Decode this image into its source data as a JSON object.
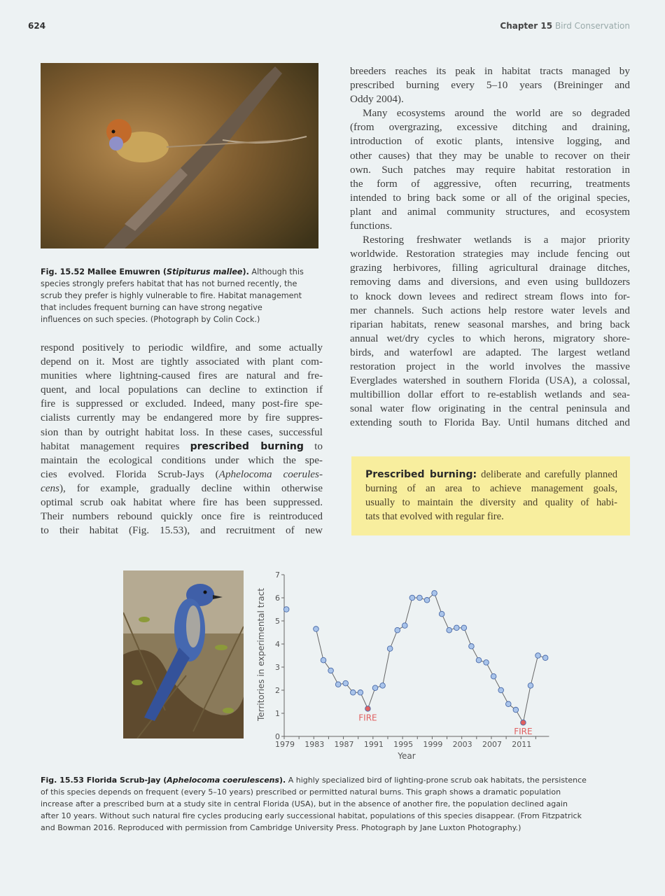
{
  "header": {
    "page_number": "624",
    "chapter_label": "Chapter 15",
    "chapter_title": "Bird Conservation"
  },
  "figure_52": {
    "photo_subject": "Mallee Emuwren perched on branch",
    "caption_lines": [
      {
        "bold": "Fig. 15.52  Mallee Emuwren (",
        "italic_bold": "Stipiturus mallee",
        "bold2": ").",
        "text": " Although this"
      },
      {
        "text": "species strongly prefers habitat that has not burned recently, the"
      },
      {
        "text": "scrub they prefer is highly vulnerable to fire. Habitat management"
      },
      {
        "text": "that includes frequent burning can have strong negative"
      },
      {
        "text": "influences on such species. (Photograph by Colin Cock.)"
      }
    ]
  },
  "left_column": {
    "lines": [
      "respond positively to periodic wildfire, and some actually",
      "depend on it. Most are tightly associated with plant com-",
      "munities where lightning-caused fires are natural and fre-",
      "quent, and local populations can decline to extinction if",
      "fire is suppressed or excluded. Indeed, many post-fire spe-",
      "cialists currently may be endangered more by fire suppres-",
      "sion than by outright habitat loss. In these cases, successful"
    ],
    "line_keyword": {
      "before": "habitat management requires ",
      "keyword": "prescribed burning",
      "after": " to"
    },
    "lines2": [
      "maintain the ecological conditions under which the spe-"
    ],
    "line_italic1": {
      "before": "cies evolved. Florida Scrub-Jays (",
      "italic": "Aphelocoma coerules-"
    },
    "line_italic2": {
      "italic": "cens",
      "after": "), for example, gradually decline within otherwise"
    },
    "lines3": [
      "optimal scrub oak habitat where fire has been suppressed.",
      "Their numbers rebound quickly once fire is reintroduced",
      "to their habitat (Fig. 15.53), and recruitment of new"
    ]
  },
  "right_column": {
    "para1": [
      "breeders reaches its peak in habitat tracts managed by",
      "prescribed burning every 5–10 years (Breininger and",
      "Oddy 2004)."
    ],
    "para2": [
      "Many ecosystems around the world are so degraded",
      "(from overgrazing, excessive ditching and draining,",
      "introduction of exotic plants, intensive logging, and",
      "other causes) that they may be unable to recover on their",
      "own. Such patches may require habitat restoration in",
      "the form of aggressive, often recurring, treatments",
      "intended to bring back some or all of the original species,",
      "plant and animal community structures, and ecosystem",
      "functions."
    ],
    "para3": [
      "Restoring freshwater wetlands is a major priority",
      "worldwide. Restoration strategies may include fencing out",
      "grazing herbivores, filling agricultural drainage ditches,",
      "removing dams and diversions, and even using bulldozers",
      "to knock down levees and redirect stream flows into for-",
      "mer channels. Such actions help restore water levels and",
      "riparian habitats, renew seasonal marshes, and bring back",
      "annual wet/dry cycles to which herons, migratory shore-",
      "birds, and waterfowl are adapted. The largest wetland",
      "restoration project in the world involves the massive",
      "Everglades watershed in southern Florida (USA), a colossal,",
      "multibillion dollar effort to re-establish wetlands and sea-",
      "sonal water flow originating in the central peninsula and",
      "extending south to Florida Bay. Until humans ditched and"
    ]
  },
  "definition_box": {
    "term": "Prescribed burning:",
    "first_line_rest": " deliberate and carefully planned",
    "lines": [
      "burning of an area to achieve management goals,",
      "usually to maintain the diversity and quality of habi-",
      "tats that evolved with regular fire."
    ],
    "background": "#f8ee9e"
  },
  "figure_53": {
    "photo_subject": "Florida Scrub-Jay perched in scrub",
    "caption_lines": [
      {
        "bold": "Fig. 15.53  Florida Scrub-Jay (",
        "italic_bold": "Aphelocoma coerulescens",
        "bold2": ").",
        "text": " A highly specialized bird of lighting-prone scrub oak habitats, the persistence"
      },
      {
        "text": "of this species depends on frequent (every 5–10 years) prescribed or permitted natural burns. This graph shows a dramatic population"
      },
      {
        "text": "increase after a prescribed burn at a study site in central Florida (USA), but in the absence of another fire, the population declined again"
      },
      {
        "text": "after 10 years. Without such natural fire cycles producing early successional habitat, populations of this species disappear. (From Fitzpatrick"
      },
      {
        "text": "and Bowman 2016. Reproduced with permission from Cambridge University Press. Photograph by Jane Luxton Photography.)"
      }
    ]
  },
  "chart_data": {
    "type": "line",
    "title": "",
    "xlabel": "Year",
    "ylabel": "Territories in experimental tract",
    "xlim": [
      1979,
      2014
    ],
    "ylim": [
      0,
      7
    ],
    "x_tick_labels": [
      "1979",
      "1983",
      "1987",
      "1991",
      "1995",
      "1999",
      "2003",
      "2007",
      "2011"
    ],
    "y_tick_labels": [
      "0",
      "1",
      "2",
      "3",
      "4",
      "5",
      "6",
      "7"
    ],
    "grid": false,
    "point_color": "#a9c4ea",
    "fire_color": "#e06060",
    "x": [
      1979,
      1983,
      1984,
      1985,
      1986,
      1987,
      1988,
      1989,
      1990,
      1991,
      1992,
      1993,
      1994,
      1995,
      1996,
      1997,
      1998,
      1999,
      2000,
      2001,
      2002,
      2003,
      2004,
      2005,
      2006,
      2007,
      2008,
      2009,
      2010,
      2011,
      2012,
      2013,
      2014
    ],
    "y": [
      5.5,
      4.65,
      3.3,
      2.85,
      2.25,
      2.3,
      1.9,
      1.9,
      1.2,
      2.1,
      2.2,
      3.8,
      4.6,
      4.8,
      6.0,
      6.0,
      5.9,
      6.2,
      5.3,
      4.6,
      4.7,
      4.7,
      3.9,
      3.3,
      3.2,
      2.6,
      2.0,
      1.4,
      1.15,
      0.6,
      2.2,
      3.5,
      3.4
    ],
    "annotations": [
      {
        "x": 1990,
        "y": 1.2,
        "text": "FIRE"
      },
      {
        "x": 2011,
        "y": 0.6,
        "text": "FIRE"
      }
    ]
  }
}
